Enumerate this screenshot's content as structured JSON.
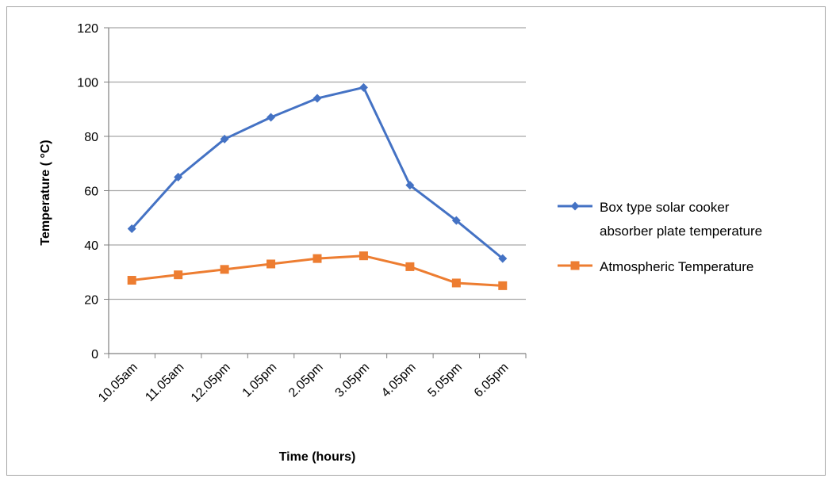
{
  "chart_data": {
    "type": "line",
    "categories": [
      "10.05am",
      "11.05am",
      "12.05pm",
      "1.05pm",
      "2.05pm",
      "3.05pm",
      "4.05pm",
      "5.05pm",
      "6.05pm"
    ],
    "series": [
      {
        "name_lines": [
          "Box  type solar cooker",
          "absorber plate temperature"
        ],
        "values": [
          46,
          65,
          79,
          87,
          94,
          98,
          62,
          49,
          35
        ],
        "color": "#4472c4",
        "marker": "diamond"
      },
      {
        "name_lines": [
          "Atmospheric Temperature"
        ],
        "values": [
          27,
          29,
          31,
          33,
          35,
          36,
          32,
          26,
          25
        ],
        "color": "#ed7d31",
        "marker": "square"
      }
    ],
    "xlabel": "Time (hours)",
    "ylabel": "Temperature ( °C)",
    "ylim": [
      0,
      120
    ],
    "yticks": [
      0,
      20,
      40,
      60,
      80,
      100,
      120
    ],
    "grid": "horizontal",
    "legend_position": "right"
  }
}
